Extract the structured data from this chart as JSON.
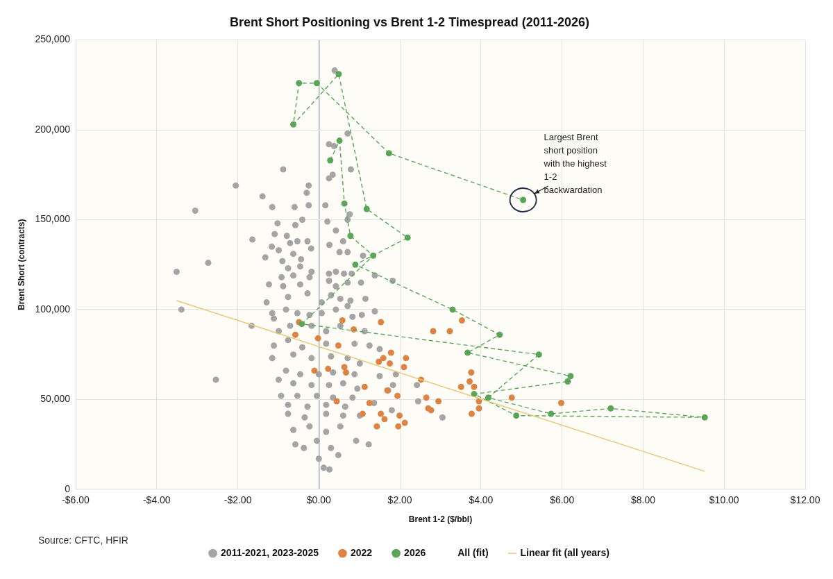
{
  "chart_data": {
    "type": "scatter",
    "title": "Brent Short Positioning vs Brent 1-2 Timespread (2011-2026)",
    "xlabel": "Brent 1-2 ($/bbl)",
    "ylabel": "Brent Short (contracts)",
    "xlim": [
      -6,
      12
    ],
    "ylim": [
      0,
      250000
    ],
    "xticks": [
      {
        "value": -6,
        "label": "-$6.00"
      },
      {
        "value": -4,
        "label": "-$4.00"
      },
      {
        "value": -2,
        "label": "-$2.00"
      },
      {
        "value": 0,
        "label": "$0.00"
      },
      {
        "value": 2,
        "label": "$2.00"
      },
      {
        "value": 4,
        "label": "$4.00"
      },
      {
        "value": 6,
        "label": "$6.00"
      },
      {
        "value": 8,
        "label": "$8.00"
      },
      {
        "value": 10,
        "label": "$10.00"
      },
      {
        "value": 12,
        "label": "$12.00"
      }
    ],
    "yticks": [
      {
        "value": 0,
        "label": "0"
      },
      {
        "value": 50000,
        "label": "50,000"
      },
      {
        "value": 100000,
        "label": "100,000"
      },
      {
        "value": 150000,
        "label": "150,000"
      },
      {
        "value": 200000,
        "label": "200,000"
      },
      {
        "value": 250000,
        "label": "250,000"
      }
    ],
    "grid": true,
    "legend": "bottom",
    "annotations": [
      "Source: CFTC, HFIR",
      {
        "text": "Largest Brent short position with the highest 1-2 backwardation",
        "x": 5.04,
        "y": 161000
      }
    ],
    "series": [
      {
        "name": "2011-2021, 2023-2025",
        "type": "scatter",
        "marker": "circle",
        "color": "#a5a5a5",
        "x": [
          -3.51,
          -3.39,
          -3.05,
          -2.73,
          -2.05,
          -2.54,
          -1.66,
          -1.64,
          -1.39,
          -1.15,
          -0.88,
          -0.6,
          -0.25,
          -0.3,
          -0.25,
          0.16,
          0.25,
          0.79,
          0.21,
          -1.02,
          -0.58,
          -0.41,
          -1.09,
          -0.79,
          -0.71,
          -0.53,
          -0.28,
          -1.16,
          -0.99,
          -0.19,
          0.42,
          0.6,
          0.26,
          0.51,
          0.71,
          -1.32,
          -0.9,
          -0.63,
          -0.44,
          -0.76,
          -0.46,
          -0.18,
          0.25,
          0.42,
          0.62,
          0.81,
          -0.92,
          -0.63,
          -0.23,
          -1.23,
          -0.88,
          -0.46,
          0.25,
          0.42,
          0.71,
          1.04,
          1.38,
          1.82,
          -1.29,
          -0.76,
          -0.28,
          0.07,
          0.3,
          0.53,
          0.78,
          1.15,
          -1.15,
          -0.81,
          -0.53,
          -0.23,
          0.07,
          0.42,
          0.71,
          1.06,
          1.38,
          -1.11,
          -0.99,
          -0.71,
          -0.18,
          0.18,
          0.53,
          0.83,
          1.13,
          -1.11,
          -0.76,
          -0.41,
          0.18,
          0.88,
          1.25,
          1.5,
          -1.15,
          -0.63,
          -0.18,
          0.3,
          0.71,
          1.01,
          -0.81,
          -0.46,
          0,
          0.35,
          0.88,
          1.5,
          1.9,
          -0.99,
          -0.63,
          -0.18,
          0.25,
          0.6,
          0.95,
          1.83,
          2.42,
          -0.93,
          -0.53,
          -0.05,
          0.35,
          0.83,
          1.71,
          -0.76,
          -0.28,
          0.18,
          0.65,
          1.36,
          2.45,
          -0.76,
          -0.35,
          0.18,
          0.6,
          1.01,
          1.8,
          3.05,
          -0.63,
          -0.23,
          0.18,
          0.53,
          0.92,
          1.23,
          -0.58,
          -0.37,
          -0.05,
          0.3,
          0.48,
          0,
          0.12,
          0.26,
          0.39,
          0.71,
          0.25,
          0.37,
          0.34,
          0.76,
          0.71,
          1.09
        ],
        "values": [
          121000,
          100000,
          155000,
          126000,
          169000,
          61000,
          91000,
          139000,
          163000,
          157000,
          178000,
          157000,
          169000,
          165000,
          158000,
          158000,
          173000,
          178000,
          149000,
          148000,
          147000,
          150000,
          142000,
          141000,
          137000,
          138000,
          138000,
          135000,
          133000,
          134000,
          144000,
          138000,
          136000,
          132000,
          132000,
          129000,
          127000,
          131000,
          128000,
          123000,
          124000,
          121000,
          120000,
          121000,
          120000,
          120000,
          118000,
          119000,
          118000,
          114000,
          113000,
          114000,
          116000,
          113000,
          115000,
          115000,
          119000,
          116000,
          104000,
          107000,
          109000,
          104000,
          108000,
          106000,
          105000,
          106000,
          98000,
          100000,
          98000,
          97000,
          98000,
          100000,
          102000,
          97000,
          99000,
          95000,
          88000,
          91000,
          91000,
          88000,
          91000,
          96000,
          88000,
          80000,
          83000,
          79000,
          81000,
          81000,
          80000,
          78000,
          73000,
          75000,
          73000,
          74000,
          73000,
          70000,
          66000,
          64000,
          64000,
          65000,
          64000,
          63000,
          64000,
          61000,
          59000,
          58000,
          58000,
          59000,
          56000,
          58000,
          58000,
          52000,
          52000,
          52000,
          51000,
          51000,
          55000,
          47000,
          46000,
          47000,
          46000,
          48000,
          49000,
          42000,
          40000,
          42000,
          41000,
          41000,
          44000,
          40000,
          33000,
          35000,
          32000,
          35000,
          27000,
          25000,
          25000,
          23000,
          27000,
          23000,
          19000,
          17000,
          12000,
          11000,
          233000,
          198000,
          192000,
          191000,
          175000,
          153000,
          150000,
          130000
        ]
      },
      {
        "name": "2022",
        "type": "scatter",
        "marker": "circle",
        "color": "#dd8445",
        "x": [
          0.58,
          1.53,
          0.86,
          2.82,
          3.23,
          3.53,
          0.48,
          1.78,
          2.15,
          1.59,
          1.48,
          1.75,
          2.1,
          0.63,
          0.67,
          3.76,
          2.52,
          3.72,
          3.83,
          3.51,
          1.13,
          1.69,
          1.94,
          2.65,
          2.95,
          4.76,
          5.98,
          3.95,
          0.44,
          1.25,
          2.7,
          2.77,
          3.95,
          3.77,
          1.53,
          1.99,
          1.08,
          1.62,
          2.12,
          1.43,
          1.96,
          -0.49,
          -0.58,
          -0.02,
          -0.11,
          0.23
        ],
        "values": [
          94000,
          93000,
          89000,
          88000,
          88000,
          94000,
          80000,
          76000,
          73000,
          73000,
          71000,
          70000,
          68000,
          68000,
          65000,
          65000,
          61000,
          60000,
          57000,
          57000,
          57000,
          55000,
          52000,
          51000,
          49000,
          51000,
          48000,
          49000,
          49000,
          48000,
          45000,
          44000,
          45000,
          42000,
          42000,
          41000,
          42000,
          39000,
          37000,
          35000,
          35000,
          93000,
          86000,
          84000,
          66000,
          67000
        ]
      },
      {
        "name": "2026",
        "type": "line",
        "marker": "circle",
        "line_style": "dashed",
        "color": "#5ba55b",
        "x": [
          0.28,
          0.51,
          0.63,
          0.78,
          1.34,
          -0.42,
          5.43,
          4.18,
          5.73,
          7.2,
          9.52,
          4.87,
          3.83,
          6.14,
          6.21,
          3.67,
          4.46,
          3.3,
          0.9,
          2.19,
          1.18,
          0.49,
          -0.63,
          -0.49,
          -0.05,
          1.73,
          5.04
        ],
        "values": [
          183000,
          194000,
          159000,
          141000,
          130000,
          92000,
          75000,
          51000,
          42000,
          45000,
          40000,
          41000,
          53000,
          60000,
          63000,
          76000,
          86000,
          100000,
          125000,
          140000,
          156000,
          231000,
          203000,
          226000,
          226000,
          187000,
          161000
        ]
      },
      {
        "name": "All (fit)",
        "type": "scatter",
        "marker": "none"
      },
      {
        "name": "Linear fit (all years)",
        "type": "line",
        "marker": "none",
        "line_style": "solid",
        "color": "#e9c878",
        "x": [
          -3.51,
          9.52
        ],
        "values": [
          105000,
          10000
        ]
      }
    ]
  }
}
